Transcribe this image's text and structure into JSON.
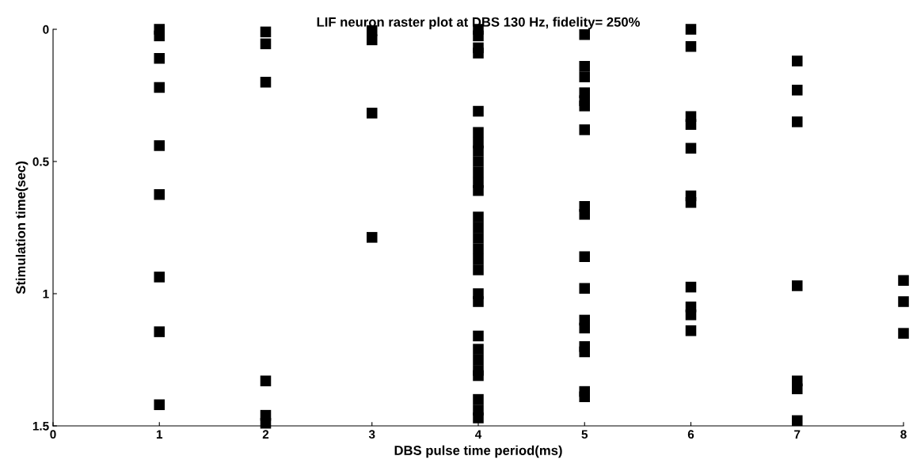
{
  "chart_data": {
    "type": "scatter",
    "title": "LIF neuron raster plot at DBS 130 Hz, fidelity= 250%",
    "xlabel": "DBS pulse time period(ms)",
    "ylabel": "Stimulation time(sec)",
    "series": [
      {
        "color": "#000000",
        "x": [
          1,
          1,
          1,
          1,
          1,
          1,
          1,
          1,
          1,
          2,
          2,
          2,
          2,
          2,
          2,
          3,
          3,
          3,
          3,
          4,
          4,
          4,
          4,
          4,
          4,
          4,
          4,
          4,
          4,
          4,
          4,
          4,
          4,
          4,
          4,
          4,
          4,
          4,
          4,
          4,
          4,
          4,
          4,
          4,
          4,
          4,
          4,
          5,
          5,
          5,
          5,
          5,
          5,
          5,
          5,
          5,
          5,
          5,
          5,
          5,
          5,
          5,
          5,
          5,
          6,
          6,
          6,
          6,
          6,
          6,
          6,
          6,
          6,
          6,
          6,
          7,
          7,
          7,
          7,
          7,
          7,
          7,
          8,
          8,
          8
        ],
        "values": [
          0,
          0.025,
          0.11,
          0.22,
          0.44,
          0.625,
          0.937,
          1.144,
          1.42,
          0.01,
          0.055,
          0.2,
          1.33,
          1.46,
          1.49,
          0.005,
          0.04,
          0.317,
          0.787,
          0,
          0.025,
          0.07,
          0.09,
          0.31,
          0.39,
          0.43,
          0.46,
          0.5,
          0.54,
          0.58,
          0.61,
          0.71,
          0.75,
          0.79,
          0.83,
          0.87,
          0.91,
          1.0,
          1.03,
          1.16,
          1.21,
          1.25,
          1.29,
          1.31,
          1.4,
          1.44,
          1.47,
          0.02,
          0.14,
          0.18,
          0.24,
          0.27,
          0.29,
          0.38,
          0.67,
          0.7,
          0.86,
          0.98,
          1.1,
          1.13,
          1.2,
          1.22,
          1.37,
          1.39,
          0.0,
          0.065,
          0.33,
          0.36,
          0.45,
          0.63,
          0.655,
          0.975,
          1.05,
          1.08,
          1.14,
          0.12,
          0.23,
          0.35,
          0.97,
          1.33,
          1.36,
          1.48,
          0.95,
          1.03,
          1.15
        ]
      }
    ],
    "marker": "square",
    "xlim": [
      0,
      8
    ],
    "xticks": [
      0,
      1,
      2,
      3,
      4,
      5,
      6,
      7,
      8
    ],
    "ylim": [
      1.5,
      0
    ],
    "yticks": [
      0,
      0.5,
      1,
      1.5
    ],
    "grid": false
  }
}
